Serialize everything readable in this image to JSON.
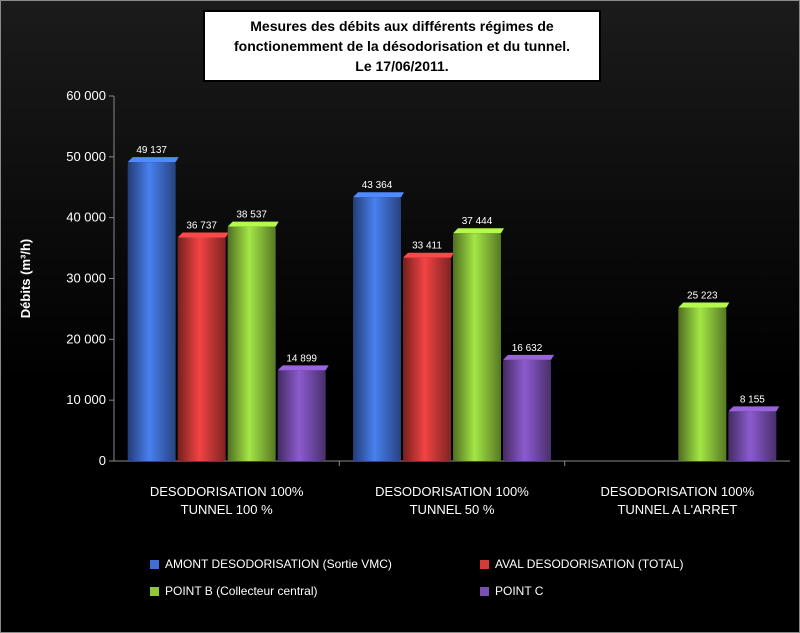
{
  "chart_data": {
    "type": "bar",
    "title": [
      "Mesures des débits aux différents régimes de",
      "fonctionemment  de la désodorisation et du tunnel.",
      "Le 17/06/2011."
    ],
    "ylabel": "Débits (m³/h)",
    "ylim": [
      0,
      60000
    ],
    "yticks": [
      0,
      10000,
      20000,
      30000,
      40000,
      50000,
      60000
    ],
    "ytick_labels": [
      "0",
      "10 000",
      "20 000",
      "30 000",
      "40 000",
      "50 000",
      "60 000"
    ],
    "categories": [
      [
        "DESODORISATION 100%",
        "TUNNEL 100 %"
      ],
      [
        "DESODORISATION 100%",
        "TUNNEL 50 %"
      ],
      [
        "DESODORISATION 100%",
        "TUNNEL A L'ARRET"
      ]
    ],
    "series": [
      {
        "name": "AMONT DESODORISATION (Sortie VMC)",
        "color": "#3f6fd1",
        "values": [
          49137,
          43364,
          null
        ],
        "labels": [
          "49 137",
          "43 364",
          ""
        ]
      },
      {
        "name": "AVAL DESODORISATION (TOTAL)",
        "color": "#d33a3a",
        "values": [
          36737,
          33411,
          null
        ],
        "labels": [
          "36 737",
          "33 411",
          ""
        ]
      },
      {
        "name": "POINT B (Collecteur central)",
        "color": "#8fc83c",
        "values": [
          38537,
          37444,
          25223
        ],
        "labels": [
          "38 537",
          "37 444",
          "25 223"
        ]
      },
      {
        "name": "POINT C",
        "color": "#7a4fb3",
        "values": [
          14899,
          16632,
          8155
        ],
        "labels": [
          "14 899",
          "16 632",
          "8 155"
        ]
      }
    ],
    "legend_position": "bottom",
    "grid": false
  }
}
